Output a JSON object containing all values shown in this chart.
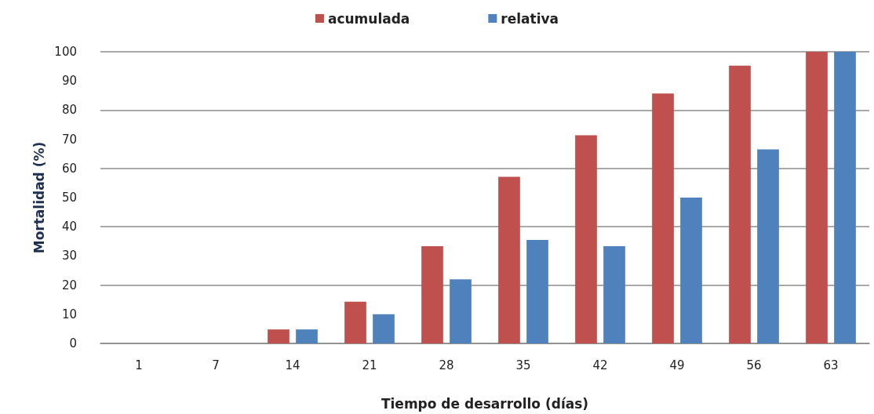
{
  "chart_data": {
    "type": "bar",
    "xlabel": "Tiempo de desarrollo (días)",
    "ylabel": "Mortalidad (%)",
    "categories": [
      "1",
      "7",
      "14",
      "21",
      "28",
      "35",
      "42",
      "49",
      "56",
      "63"
    ],
    "series": [
      {
        "name": "acumulada",
        "color": "#c0504d",
        "values": [
          0,
          0,
          4.8,
          14.3,
          33.3,
          57.1,
          71.4,
          85.7,
          95.2,
          100
        ]
      },
      {
        "name": "relativa",
        "color": "#4f81bd",
        "values": [
          0,
          0,
          4.8,
          10,
          22,
          35.5,
          33.3,
          50,
          66.5,
          100
        ]
      }
    ],
    "ylim": [
      0,
      100
    ],
    "yticks": [
      0,
      10,
      20,
      30,
      40,
      50,
      60,
      70,
      80,
      90,
      100
    ],
    "grid": "y",
    "legend": "top"
  }
}
